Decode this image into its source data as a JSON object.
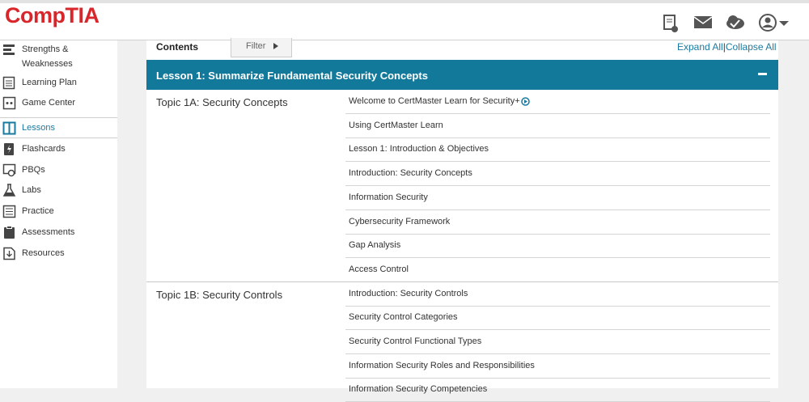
{
  "header": {
    "logo": "CompTIA"
  },
  "sidebar": {
    "items": [
      "Strengths & Weaknesses",
      "Learning Plan",
      "Game Center",
      "Lessons",
      "Flashcards",
      "PBQs",
      "Labs",
      "Practice",
      "Assessments",
      "Resources"
    ],
    "active": "Lessons"
  },
  "toolbar": {
    "contents": "Contents",
    "filter": "Filter",
    "expand_all": "Expand All",
    "separator": "|",
    "collapse_all": "Collapse All"
  },
  "lesson": {
    "title": "Lesson 1: Summarize Fundamental Security Concepts"
  },
  "topics": [
    {
      "title": "Topic 1A: Security Concepts",
      "items": [
        "Welcome to CertMaster Learn for Security+",
        "Using CertMaster Learn",
        "Lesson 1: Introduction & Objectives",
        "Introduction: Security Concepts",
        "Information Security",
        "Cybersecurity Framework",
        "Gap Analysis",
        "Access Control"
      ]
    },
    {
      "title": "Topic 1B: Security Controls",
      "items": [
        "Introduction: Security Controls",
        "Security Control Categories",
        "Security Control Functional Types",
        "Information Security Roles and Responsibilities",
        "Information Security Competencies"
      ]
    }
  ]
}
